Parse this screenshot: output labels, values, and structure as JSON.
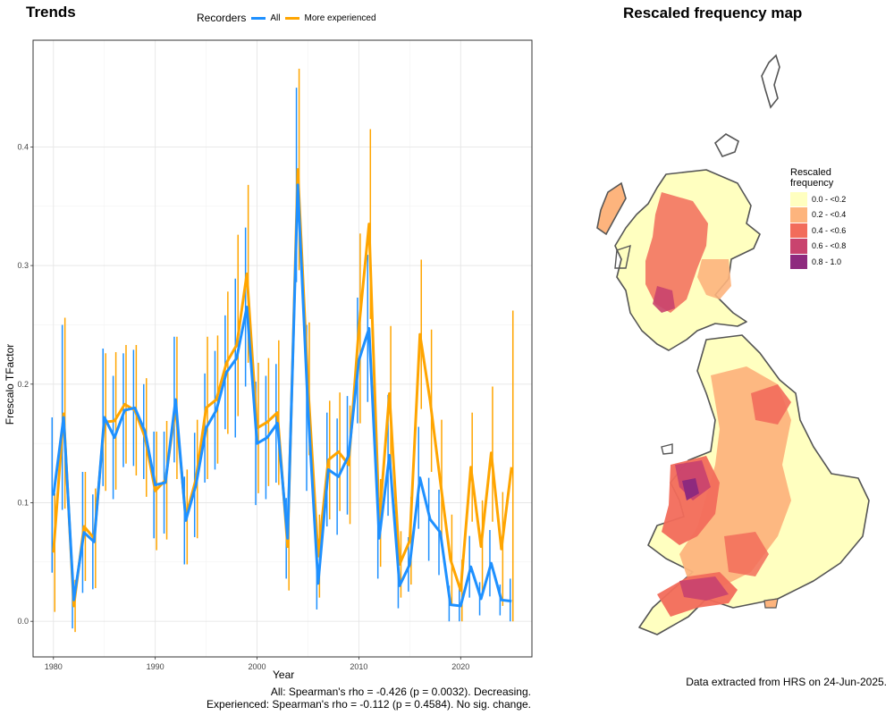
{
  "trends_title": "Trends",
  "map_title": "Rescaled frequency map",
  "legend": {
    "title": "Recorders",
    "items": [
      {
        "label": "All",
        "color": "#1E90FF"
      },
      {
        "label": "More experienced",
        "color": "#FFA500"
      }
    ]
  },
  "stats": {
    "line1": "All: Spearman's rho = -0.426 (p = 0.0032). Decreasing.",
    "line2": "Experienced: Spearman's rho = -0.112 (p = 0.4584). No sig. change."
  },
  "data_note": "Data extracted from HRS on 24-Jun-2025.",
  "map_legend": {
    "title": "Rescaled\nfrequency",
    "bins": [
      {
        "label": "0.0 - <0.2",
        "color": "#FFFFC0"
      },
      {
        "label": "0.2 - <0.4",
        "color": "#FDB47D"
      },
      {
        "label": "0.4 - <0.6",
        "color": "#F26C5B"
      },
      {
        "label": "0.6 - <0.8",
        "color": "#C9436E"
      },
      {
        "label": "0.8 - 1.0",
        "color": "#8E2A7E"
      }
    ]
  },
  "chart_data": {
    "type": "line",
    "title": "Trends",
    "xlabel": "Year",
    "ylabel": "Frescalo TFactor",
    "xlim": [
      1978,
      2027
    ],
    "ylim": [
      -0.03,
      0.49
    ],
    "x_ticks": [
      1980,
      1990,
      2000,
      2010,
      2020
    ],
    "y_ticks": [
      0.0,
      0.1,
      0.2,
      0.3,
      0.4
    ],
    "y_tick_labels": [
      "0.0",
      "0.1",
      "0.2",
      "0.3",
      "0.4"
    ],
    "grid": true,
    "legend_position": "top",
    "x": [
      1980,
      1981,
      1982,
      1983,
      1984,
      1985,
      1986,
      1987,
      1988,
      1989,
      1990,
      1991,
      1992,
      1993,
      1994,
      1995,
      1996,
      1997,
      1998,
      1999,
      2000,
      2001,
      2002,
      2003,
      2004,
      2005,
      2006,
      2007,
      2008,
      2009,
      2010,
      2011,
      2012,
      2013,
      2014,
      2015,
      2016,
      2017,
      2018,
      2019,
      2020,
      2021,
      2022,
      2023,
      2024,
      2025
    ],
    "series": [
      {
        "name": "All",
        "color": "#1E90FF",
        "values": [
          0.106,
          0.172,
          0.018,
          0.075,
          0.067,
          0.172,
          0.155,
          0.178,
          0.18,
          0.16,
          0.115,
          0.117,
          0.187,
          0.085,
          0.115,
          0.163,
          0.178,
          0.21,
          0.222,
          0.265,
          0.15,
          0.155,
          0.167,
          0.07,
          0.368,
          0.18,
          0.032,
          0.128,
          0.122,
          0.14,
          0.22,
          0.247,
          0.07,
          0.14,
          0.03,
          0.048,
          0.121,
          0.086,
          0.075,
          0.014,
          0.013,
          0.046,
          0.019,
          0.049,
          0.018,
          0.017
        ],
        "err_low": [
          0.041,
          0.094,
          -0.006,
          0.024,
          0.027,
          0.114,
          0.103,
          0.13,
          0.131,
          0.12,
          0.07,
          0.074,
          0.134,
          0.048,
          0.071,
          0.117,
          0.128,
          0.162,
          0.155,
          0.198,
          0.098,
          0.103,
          0.117,
          0.036,
          0.286,
          0.11,
          0.01,
          0.08,
          0.073,
          0.09,
          0.167,
          0.185,
          0.036,
          0.089,
          0.011,
          0.025,
          0.078,
          0.051,
          0.039,
          0.0,
          0.0,
          0.02,
          0.005,
          0.021,
          0.005,
          0.0
        ],
        "err_high": [
          0.172,
          0.25,
          0.042,
          0.126,
          0.107,
          0.23,
          0.207,
          0.226,
          0.229,
          0.2,
          0.16,
          0.16,
          0.24,
          0.122,
          0.159,
          0.209,
          0.228,
          0.258,
          0.289,
          0.332,
          0.202,
          0.207,
          0.217,
          0.104,
          0.45,
          0.25,
          0.054,
          0.176,
          0.171,
          0.19,
          0.273,
          0.309,
          0.104,
          0.191,
          0.049,
          0.071,
          0.164,
          0.121,
          0.111,
          0.03,
          0.03,
          0.072,
          0.033,
          0.077,
          0.031,
          0.036
        ]
      },
      {
        "name": "More experienced",
        "color": "#FFA500",
        "values": [
          0.058,
          0.175,
          0.013,
          0.08,
          0.07,
          0.168,
          0.169,
          0.183,
          0.178,
          0.155,
          0.11,
          0.119,
          0.18,
          0.088,
          0.12,
          0.18,
          0.187,
          0.218,
          0.233,
          0.293,
          0.163,
          0.168,
          0.176,
          0.063,
          0.381,
          0.2,
          0.055,
          0.136,
          0.143,
          0.132,
          0.247,
          0.335,
          0.083,
          0.192,
          0.048,
          0.068,
          0.242,
          0.186,
          0.118,
          0.052,
          0.026,
          0.13,
          0.063,
          0.142,
          0.061,
          0.13
        ],
        "err_low": [
          0.008,
          0.095,
          -0.009,
          0.034,
          0.028,
          0.11,
          0.111,
          0.133,
          0.123,
          0.105,
          0.06,
          0.069,
          0.12,
          0.048,
          0.07,
          0.12,
          0.133,
          0.158,
          0.173,
          0.218,
          0.108,
          0.114,
          0.115,
          0.026,
          0.296,
          0.14,
          0.02,
          0.086,
          0.093,
          0.082,
          0.167,
          0.255,
          0.046,
          0.132,
          0.02,
          0.031,
          0.179,
          0.126,
          0.066,
          0.014,
          0.0,
          0.084,
          0.024,
          0.084,
          0.013,
          0.0
        ],
        "err_high": [
          0.108,
          0.256,
          0.035,
          0.126,
          0.112,
          0.226,
          0.227,
          0.233,
          0.233,
          0.205,
          0.16,
          0.169,
          0.24,
          0.128,
          0.17,
          0.24,
          0.241,
          0.278,
          0.326,
          0.368,
          0.218,
          0.222,
          0.237,
          0.1,
          0.466,
          0.252,
          0.09,
          0.186,
          0.193,
          0.182,
          0.327,
          0.415,
          0.12,
          0.249,
          0.076,
          0.105,
          0.305,
          0.246,
          0.17,
          0.09,
          0.052,
          0.176,
          0.102,
          0.198,
          0.109,
          0.262
        ]
      }
    ]
  }
}
